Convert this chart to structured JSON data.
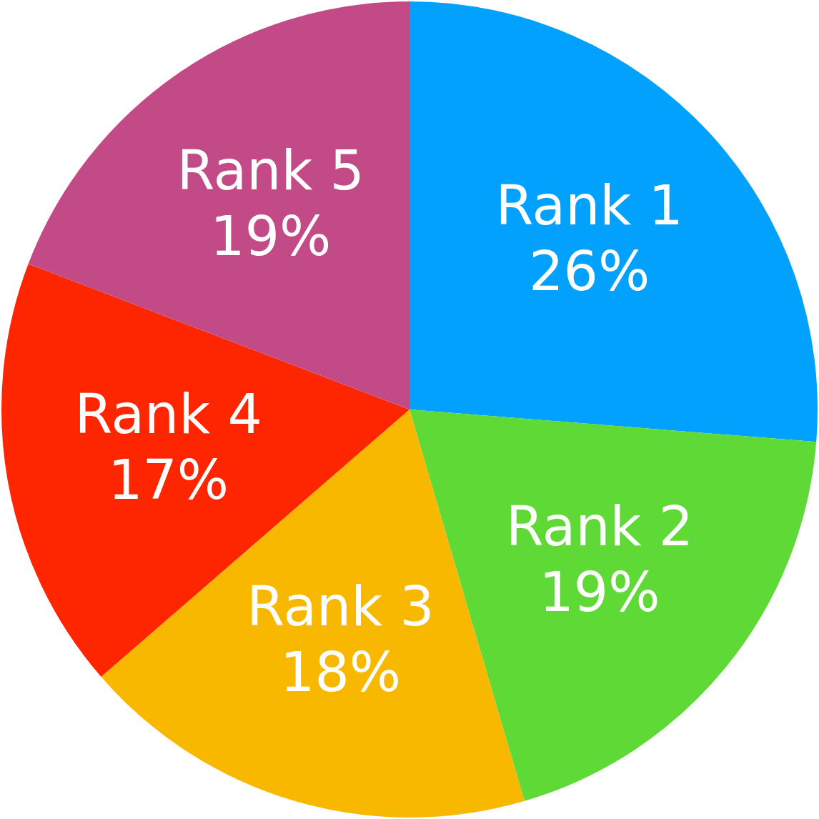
{
  "chart_data": {
    "type": "pie",
    "categories": [
      "Rank 1",
      "Rank 2",
      "Rank 3",
      "Rank 4",
      "Rank 5"
    ],
    "values": [
      26,
      19,
      18,
      17,
      19
    ],
    "value_labels": [
      "26%",
      "19%",
      "18%",
      "17%",
      "19%"
    ],
    "colors": [
      "#03a1fe",
      "#5fd936",
      "#f8b800",
      "#fe2600",
      "#c24a86"
    ],
    "legend": false
  }
}
